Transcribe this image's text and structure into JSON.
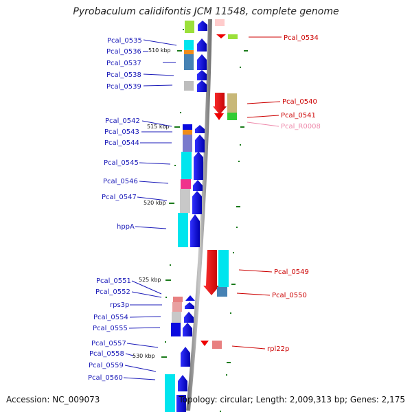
{
  "title": "Pyrobaculum calidifontis JCM 11548, complete genome",
  "footer": {
    "accession": "Accession: NC_009073",
    "summary": "Topology: circular; Length: 2,009,313 bp; Genes: 2,175"
  },
  "ticks": [
    "510 kbp",
    "515 kbp",
    "520 kbp",
    "525 kbp",
    "530 kbp"
  ],
  "left_labels": [
    "Pcal_0535",
    "Pcal_0536",
    "Pcal_0537",
    "Pcal_0538",
    "Pcal_0539",
    "Pcal_0542",
    "Pcal_0543",
    "Pcal_0544",
    "Pcal_0545",
    "Pcal_0546",
    "Pcal_0547",
    "hppA",
    "Pcal_0551",
    "Pcal_0552",
    "rps3p",
    "Pcal_0554",
    "Pcal_0555",
    "Pcal_0557",
    "Pcal_0558",
    "Pcal_0559",
    "Pcal_0560"
  ],
  "right_labels": [
    "Pcal_0534",
    "Pcal_0540",
    "Pcal_0541",
    "Pcal_R0008",
    "Pcal_0549",
    "Pcal_0550",
    "rpl22p"
  ],
  "colors": {
    "left_label": "#1a1ab8",
    "right_label": "#cc0000",
    "rna_label": "#ee88aa",
    "backbone": "#8c8c8c",
    "gene_forward": "#0a0adf",
    "gene_reverse": "#ee0000",
    "cyan": "#00e5ee",
    "steel": "#4682b4",
    "gray": "#bdbdbd",
    "tick_mark": "#1a7a1a"
  }
}
